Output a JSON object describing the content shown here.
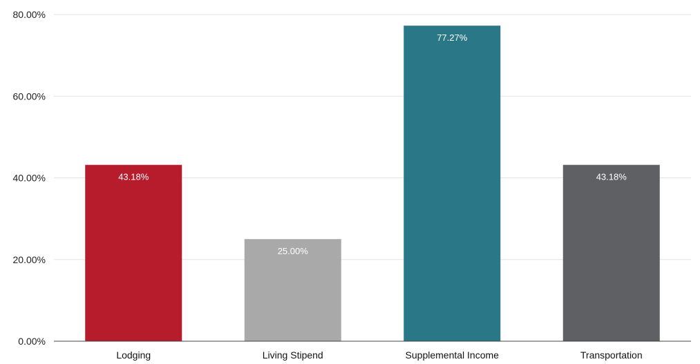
{
  "chart_data": {
    "type": "bar",
    "categories": [
      "Lodging",
      "Living Stipend",
      "Supplemental Income",
      "Transportation"
    ],
    "values": [
      43.18,
      25.0,
      77.27,
      43.18
    ],
    "data_labels": [
      "43.18%",
      "25.00%",
      "77.27%",
      "43.18%"
    ],
    "colors": [
      "#b71c2c",
      "#a9a9a9",
      "#2a7887",
      "#5f6063"
    ],
    "y_ticks": [
      0,
      20,
      40,
      60,
      80
    ],
    "y_tick_labels": [
      "0.00%",
      "20.00%",
      "40.00%",
      "60.00%",
      "80.00%"
    ],
    "ylim": [
      0,
      80
    ],
    "grid": true,
    "legend": "none",
    "title": "",
    "xlabel": "",
    "ylabel": ""
  }
}
